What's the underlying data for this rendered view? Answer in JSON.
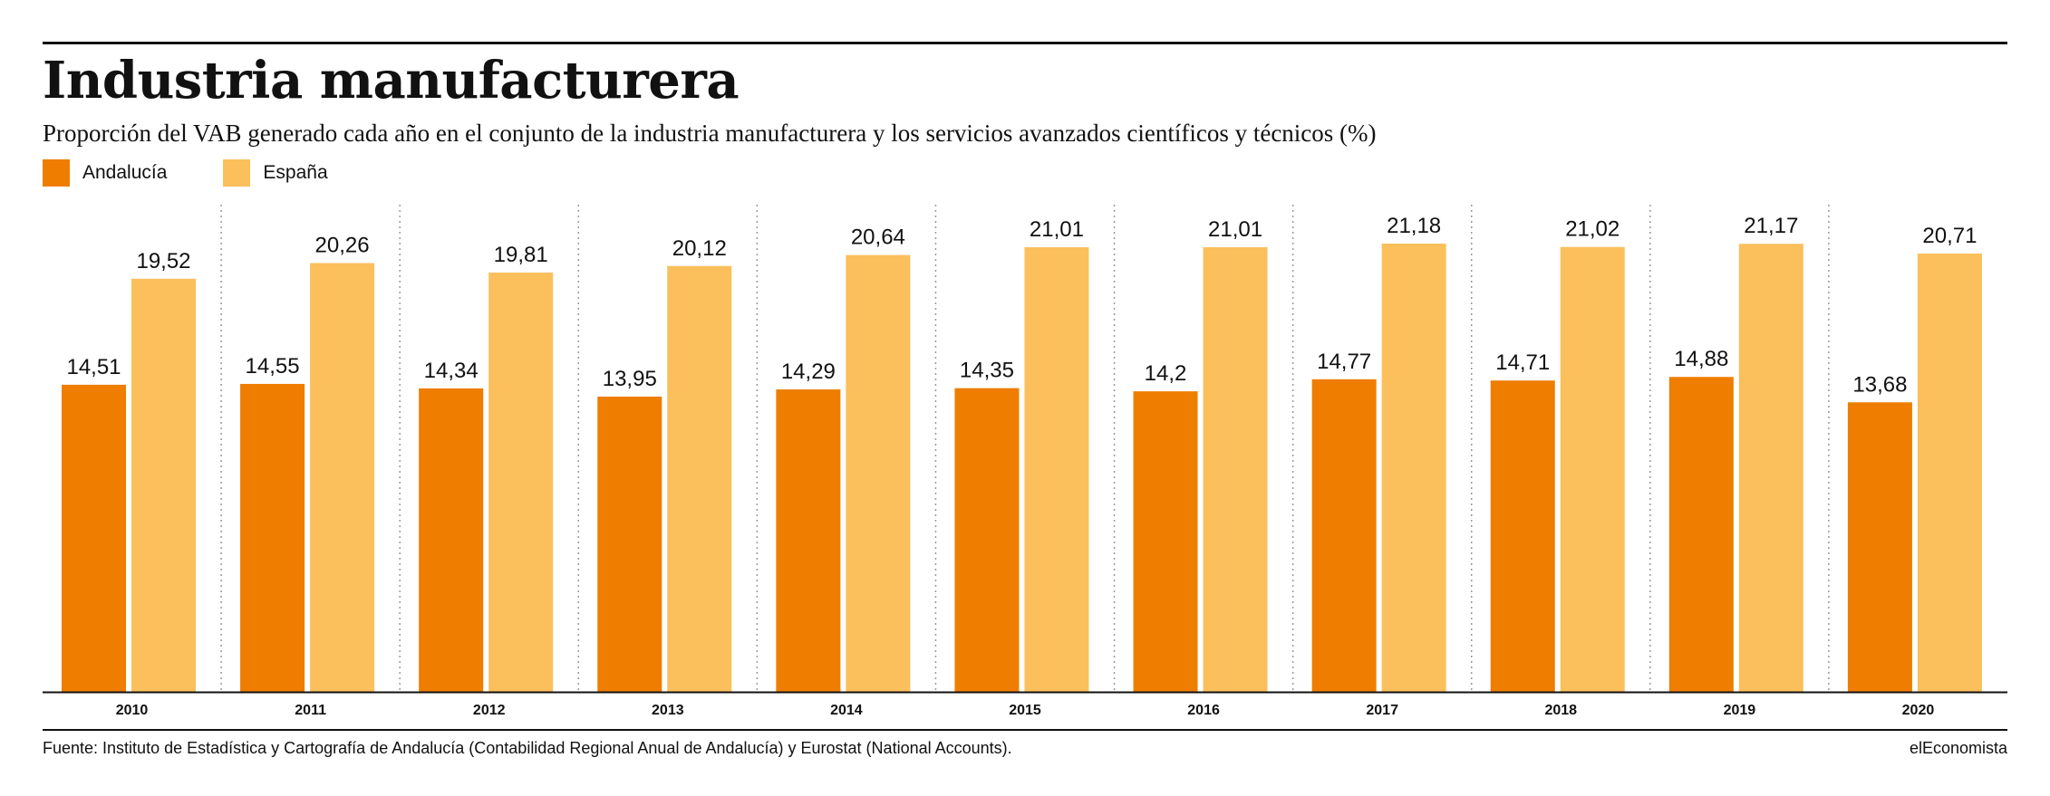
{
  "header": {
    "title": "Industria manufacturera",
    "subtitle": "Proporción del VAB generado cada año en el conjunto de la industria manufacturera y los servicios avanzados científicos y técnicos (%)"
  },
  "legend": [
    {
      "label": "Andalucía",
      "color": "#EE7D00"
    },
    {
      "label": "España",
      "color": "#FBBF5C"
    }
  ],
  "chart_data": {
    "type": "bar",
    "categories": [
      "2010",
      "2011",
      "2012",
      "2013",
      "2014",
      "2015",
      "2016",
      "2017",
      "2018",
      "2019",
      "2020"
    ],
    "series": [
      {
        "name": "Andalucía",
        "color": "#EE7D00",
        "values": [
          14.51,
          14.55,
          14.34,
          13.95,
          14.29,
          14.35,
          14.2,
          14.77,
          14.71,
          14.88,
          13.68
        ],
        "labels": [
          "14,51",
          "14,55",
          "14,34",
          "13,95",
          "14,29",
          "14,35",
          "14,2",
          "14,77",
          "14,71",
          "14,88",
          "13,68"
        ]
      },
      {
        "name": "España",
        "color": "#FBBF5C",
        "values": [
          19.52,
          20.26,
          19.81,
          20.12,
          20.64,
          21.01,
          21.01,
          21.18,
          21.02,
          21.17,
          20.71
        ],
        "labels": [
          "19,52",
          "20,26",
          "19,81",
          "20,12",
          "20,64",
          "21,01",
          "21,01",
          "21,18",
          "21,02",
          "21,17",
          "20,71"
        ]
      }
    ],
    "ylim": [
      0,
      21.18
    ],
    "grid": false,
    "separators": "dotted-vertical",
    "legend_position": "top-left",
    "title": "Industria manufacturera"
  },
  "footer": {
    "source": "Fuente: Instituto de Estadística y Cartografía de Andalucía (Contabilidad Regional Anual de Andalucía) y Eurostat (National Accounts).",
    "brand": "elEconomista"
  }
}
